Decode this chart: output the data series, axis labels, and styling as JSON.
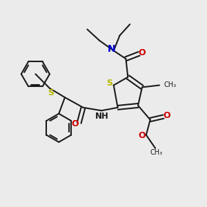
{
  "bg_color": "#ebebeb",
  "bond_color": "#1a1a1a",
  "S_color": "#b8b800",
  "N_color": "#0000cc",
  "O_color": "#cc0000",
  "figsize": [
    3.0,
    3.0
  ],
  "dpi": 100,
  "xlim": [
    0,
    10
  ],
  "ylim": [
    0,
    10
  ]
}
